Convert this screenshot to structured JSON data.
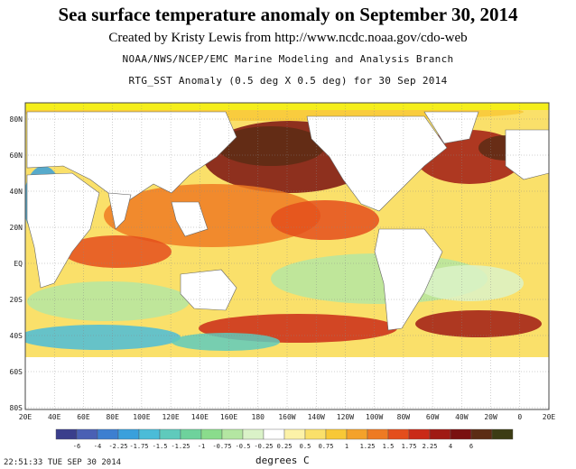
{
  "header": {
    "title": "Sea surface temperature anomaly on September 30, 2014",
    "credit": "Created by Kristy Lewis from http://www.ncdc.noaa.gov/cdo-web",
    "organization": "NOAA/NWS/NCEP/EMC Marine Modeling and Analysis Branch",
    "product": "RTG_SST Anomaly (0.5 deg X 0.5 deg) for 30 Sep 2014"
  },
  "map": {
    "latitude_labels": [
      "80N",
      "60N",
      "40N",
      "20N",
      "EQ",
      "20S",
      "40S",
      "60S",
      "80S"
    ],
    "longitude_labels": [
      "20E",
      "40E",
      "60E",
      "80E",
      "100E",
      "120E",
      "140E",
      "160E",
      "180",
      "160W",
      "140W",
      "120W",
      "100W",
      "80W",
      "60W",
      "40W",
      "20W",
      "0",
      "20E"
    ],
    "land_color": "#ffffff",
    "sea_ice_color": "#f5ee1a"
  },
  "legend": {
    "title": "degrees C",
    "tick_labels": [
      "-6",
      "-4",
      "-2.25",
      "-1.75",
      "-1.5",
      "-1.25",
      "-1",
      "-0.75",
      "-0.5",
      "-0.25",
      "0.25",
      "0.5",
      "0.75",
      "1",
      "1.25",
      "1.5",
      "1.75",
      "2.25",
      "4",
      "6"
    ],
    "colors": [
      "#3a3e8c",
      "#4a60b4",
      "#3d7fd0",
      "#3aa0dc",
      "#4bbcd8",
      "#5fcabc",
      "#6ed29c",
      "#8adc8c",
      "#b4e6a2",
      "#daf2c8",
      "#ffffff",
      "#fcf2a8",
      "#fae06a",
      "#f8c836",
      "#f4a22a",
      "#ee7a22",
      "#e44e1c",
      "#ca2a18",
      "#a01a14",
      "#7a1010",
      "#5c2c14",
      "#3c3c14"
    ]
  },
  "footer": {
    "timestamp": "22:51:33  TUE SEP 30 2014"
  }
}
